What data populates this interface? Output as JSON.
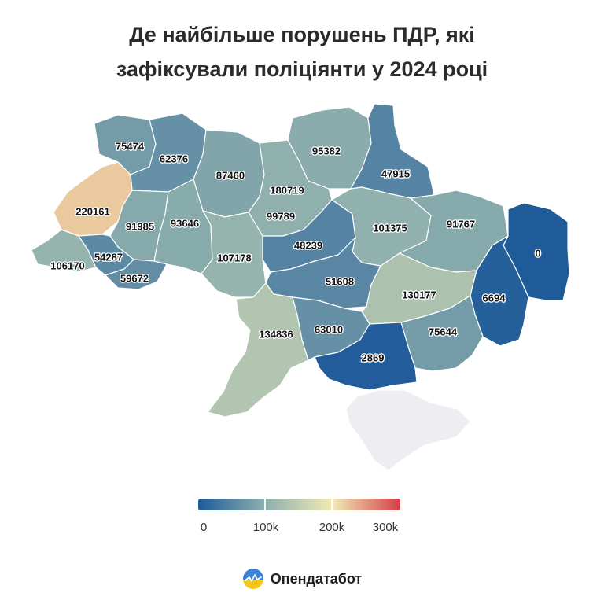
{
  "title": {
    "line1": "Де найбільше порушень ПДР, які",
    "line2": "зафіксували поліціянти у 2024 році"
  },
  "legend": {
    "labels": [
      "0",
      "100k",
      "200k",
      "300k"
    ],
    "max": 300000
  },
  "colors": {
    "scale": [
      "#1f5a99",
      "#8fb0ad",
      "#f0ebb5",
      "#d1404a"
    ],
    "no_data": "#eeeef2"
  },
  "brand": {
    "name": "Опендатабот",
    "logo_icon": "opendatabot-logo-icon"
  },
  "chart_data": {
    "type": "choropleth",
    "regions": [
      {
        "id": "volyn",
        "value": 75474
      },
      {
        "id": "rivne",
        "value": 62376
      },
      {
        "id": "zhytomyr",
        "value": 87460
      },
      {
        "id": "kyiv-city",
        "value": 180719
      },
      {
        "id": "kyiv-oblast",
        "value": 99789
      },
      {
        "id": "chernihiv",
        "value": 95382
      },
      {
        "id": "sumy",
        "value": 47915
      },
      {
        "id": "lviv",
        "value": 220161
      },
      {
        "id": "ternopil",
        "value": 91985
      },
      {
        "id": "khmelnytskyi",
        "value": 93646
      },
      {
        "id": "zakarpattia",
        "value": 106170
      },
      {
        "id": "ivano-frankivsk",
        "value": 54287
      },
      {
        "id": "chernivtsi",
        "value": 59672
      },
      {
        "id": "vinnytsia",
        "value": 107178
      },
      {
        "id": "cherkasy",
        "value": 48239
      },
      {
        "id": "poltava",
        "value": 101375
      },
      {
        "id": "kharkiv",
        "value": 91767
      },
      {
        "id": "luhansk",
        "value": 0
      },
      {
        "id": "kirovohrad",
        "value": 51608
      },
      {
        "id": "dnipropetrovsk",
        "value": 130177
      },
      {
        "id": "donetsk",
        "value": 6694
      },
      {
        "id": "odesa",
        "value": 134836
      },
      {
        "id": "mykolaiv",
        "value": 63010
      },
      {
        "id": "zaporizhzhia",
        "value": 75644
      },
      {
        "id": "kherson",
        "value": 2869
      },
      {
        "id": "crimea",
        "value": null
      }
    ]
  }
}
